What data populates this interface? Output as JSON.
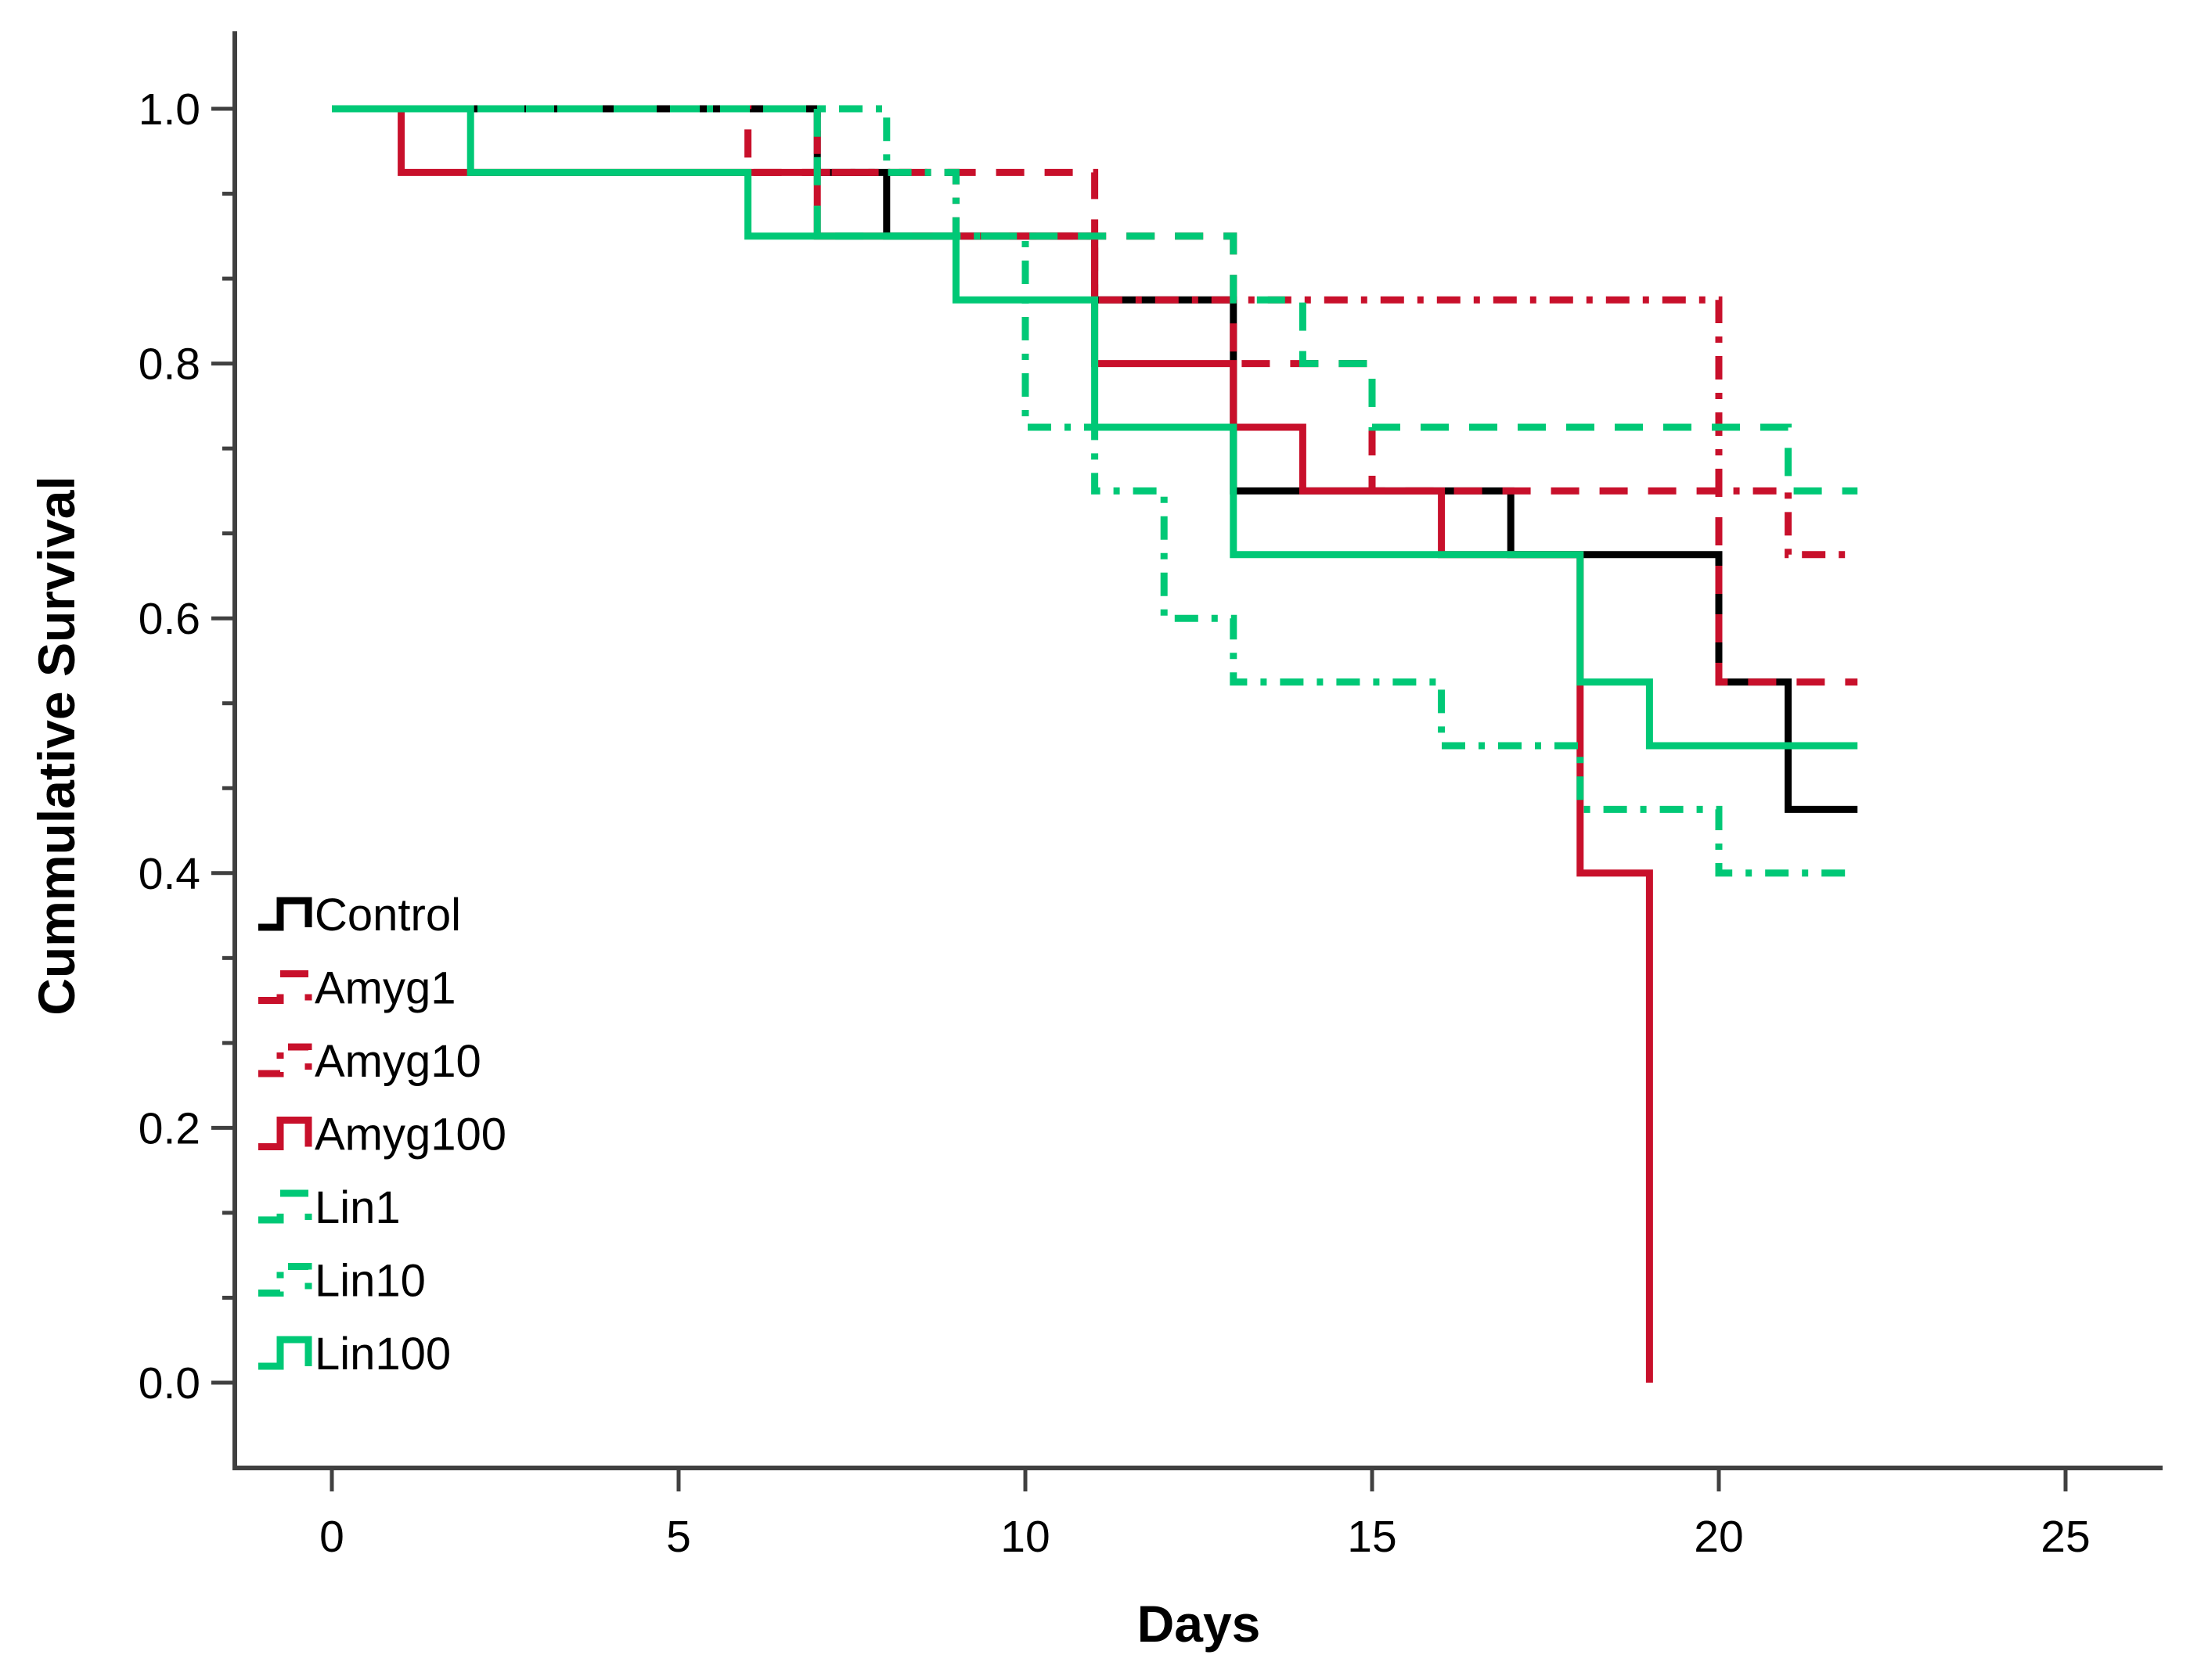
{
  "chart_data": {
    "type": "line",
    "subtype": "kaplan-meier-step",
    "title": "",
    "xlabel": "Days",
    "ylabel": "Cummulative Survival",
    "x_ticks": [
      "0",
      "5",
      "10",
      "15",
      "20",
      "25"
    ],
    "x_tick_values": [
      0,
      5,
      10,
      15,
      20,
      25
    ],
    "y_ticks": [
      "0.0",
      "0.2",
      "0.4",
      "0.6",
      "0.8",
      "1.0"
    ],
    "y_tick_values": [
      0,
      0.2,
      0.4,
      0.6,
      0.8,
      1.0
    ],
    "xlim": [
      -1.4,
      26.4
    ],
    "ylim": [
      0.0,
      1.0
    ],
    "y_minor_divisions_per_major": 3,
    "grid": false,
    "legend_position": "lower-left-inside",
    "axis_color": "#404040",
    "line_width": 9,
    "colors": {
      "control": "#000000",
      "amygdalin": "#c8102b",
      "linamarin": "#00c876"
    },
    "series": [
      {
        "name": "Control",
        "color": "#000000",
        "dash": "solid",
        "points": [
          [
            0,
            1.0
          ],
          [
            7,
            1.0
          ],
          [
            7,
            0.95
          ],
          [
            8,
            0.95
          ],
          [
            8,
            0.9
          ],
          [
            11,
            0.9
          ],
          [
            11,
            0.85
          ],
          [
            13,
            0.85
          ],
          [
            13,
            0.7
          ],
          [
            17,
            0.7
          ],
          [
            17,
            0.65
          ],
          [
            20,
            0.65
          ],
          [
            20,
            0.55
          ],
          [
            21,
            0.55
          ],
          [
            21,
            0.45
          ],
          [
            22,
            0.45
          ]
        ]
      },
      {
        "name": "Amyg1",
        "color": "#c8102b",
        "dash": "dashed",
        "points": [
          [
            0,
            1.0
          ],
          [
            6,
            1.0
          ],
          [
            6,
            0.95
          ],
          [
            11,
            0.95
          ],
          [
            11,
            0.9
          ],
          [
            13,
            0.9
          ],
          [
            13,
            0.8
          ],
          [
            15,
            0.8
          ],
          [
            15,
            0.7
          ],
          [
            20,
            0.7
          ],
          [
            20,
            0.55
          ],
          [
            22,
            0.55
          ]
        ]
      },
      {
        "name": "Amyg10",
        "color": "#c8102b",
        "dash": "dashdot",
        "points": [
          [
            0,
            1.0
          ],
          [
            7,
            1.0
          ],
          [
            7,
            0.95
          ],
          [
            9,
            0.95
          ],
          [
            9,
            0.9
          ],
          [
            11,
            0.9
          ],
          [
            11,
            0.85
          ],
          [
            20,
            0.85
          ],
          [
            20,
            0.7
          ],
          [
            21,
            0.7
          ],
          [
            21,
            0.65
          ],
          [
            22,
            0.65
          ]
        ]
      },
      {
        "name": "Amyg100",
        "color": "#c8102b",
        "dash": "solid",
        "points": [
          [
            0,
            1.0
          ],
          [
            1,
            1.0
          ],
          [
            1,
            0.95
          ],
          [
            7,
            0.95
          ],
          [
            7,
            0.9
          ],
          [
            11,
            0.9
          ],
          [
            11,
            0.8
          ],
          [
            13,
            0.8
          ],
          [
            13,
            0.75
          ],
          [
            14,
            0.75
          ],
          [
            14,
            0.7
          ],
          [
            16,
            0.7
          ],
          [
            16,
            0.65
          ],
          [
            18,
            0.65
          ],
          [
            18,
            0.4
          ],
          [
            19,
            0.4
          ],
          [
            19,
            0.0
          ]
        ]
      },
      {
        "name": "Lin1",
        "color": "#00c876",
        "dash": "dashed",
        "points": [
          [
            0,
            1.0
          ],
          [
            7,
            1.0
          ],
          [
            7,
            0.9
          ],
          [
            13,
            0.9
          ],
          [
            13,
            0.85
          ],
          [
            14,
            0.85
          ],
          [
            14,
            0.8
          ],
          [
            15,
            0.8
          ],
          [
            15,
            0.75
          ],
          [
            21,
            0.75
          ],
          [
            21,
            0.7
          ],
          [
            22,
            0.7
          ]
        ]
      },
      {
        "name": "Lin10",
        "color": "#00c876",
        "dash": "dashdot",
        "points": [
          [
            0,
            1.0
          ],
          [
            8,
            1.0
          ],
          [
            8,
            0.95
          ],
          [
            9,
            0.95
          ],
          [
            9,
            0.9
          ],
          [
            10,
            0.9
          ],
          [
            10,
            0.75
          ],
          [
            11,
            0.75
          ],
          [
            11,
            0.7
          ],
          [
            12,
            0.7
          ],
          [
            12,
            0.6
          ],
          [
            13,
            0.6
          ],
          [
            13,
            0.55
          ],
          [
            16,
            0.55
          ],
          [
            16,
            0.5
          ],
          [
            18,
            0.5
          ],
          [
            18,
            0.45
          ],
          [
            20,
            0.45
          ],
          [
            20,
            0.4
          ],
          [
            22,
            0.4
          ]
        ]
      },
      {
        "name": "Lin100",
        "color": "#00c876",
        "dash": "solid",
        "points": [
          [
            0,
            1.0
          ],
          [
            2,
            1.0
          ],
          [
            2,
            0.95
          ],
          [
            6,
            0.95
          ],
          [
            6,
            0.9
          ],
          [
            9,
            0.9
          ],
          [
            9,
            0.85
          ],
          [
            11,
            0.85
          ],
          [
            11,
            0.75
          ],
          [
            13,
            0.75
          ],
          [
            13,
            0.65
          ],
          [
            18,
            0.65
          ],
          [
            18,
            0.55
          ],
          [
            19,
            0.55
          ],
          [
            19,
            0.5
          ],
          [
            22,
            0.5
          ]
        ]
      }
    ],
    "legend_labels": [
      "Control",
      "Amyg1",
      "Amyg10",
      "Amyg100",
      "Lin1",
      "Lin10",
      "Lin100"
    ]
  }
}
